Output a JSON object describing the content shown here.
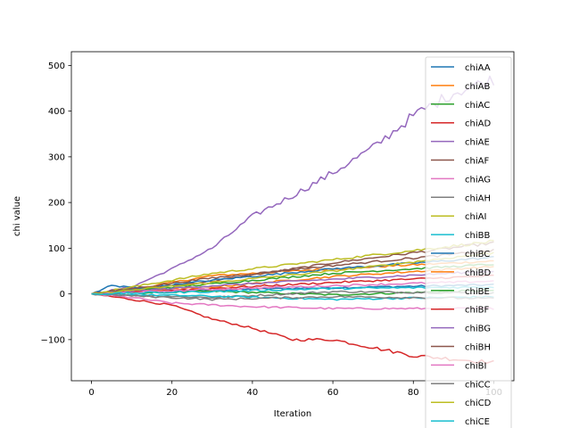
{
  "chart_data": {
    "type": "line",
    "title": "",
    "xlabel": "Iteration",
    "ylabel": "chi value",
    "xlim": [
      -5,
      105
    ],
    "ylim": [
      -190,
      530
    ],
    "xticks": [
      0,
      20,
      40,
      60,
      80,
      100
    ],
    "yticks": [
      -100,
      0,
      100,
      200,
      300,
      400,
      500
    ],
    "grid": false,
    "legend_position": "right",
    "n_points": 101,
    "series": [
      {
        "name": "chiAA",
        "color": "#1f77b4",
        "anchors": [
          [
            0,
            0
          ],
          [
            5,
            18
          ],
          [
            20,
            6
          ],
          [
            50,
            12
          ],
          [
            100,
            20
          ]
        ]
      },
      {
        "name": "chiAB",
        "color": "#ff7f0e",
        "anchors": [
          [
            0,
            0
          ],
          [
            10,
            10
          ],
          [
            30,
            40
          ],
          [
            60,
            55
          ],
          [
            100,
            72
          ]
        ]
      },
      {
        "name": "chiAC",
        "color": "#2ca02c",
        "anchors": [
          [
            0,
            0
          ],
          [
            30,
            6
          ],
          [
            60,
            -2
          ],
          [
            100,
            8
          ]
        ]
      },
      {
        "name": "chiAD",
        "color": "#d62728",
        "anchors": [
          [
            0,
            0
          ],
          [
            10,
            -12
          ],
          [
            20,
            -25
          ],
          [
            30,
            -55
          ],
          [
            40,
            -75
          ],
          [
            50,
            -100
          ],
          [
            60,
            -100
          ],
          [
            80,
            -135
          ],
          [
            100,
            -150
          ]
        ]
      },
      {
        "name": "chiAE",
        "color": "#9467bd",
        "anchors": [
          [
            0,
            0
          ],
          [
            10,
            15
          ],
          [
            20,
            55
          ],
          [
            30,
            100
          ],
          [
            40,
            170
          ],
          [
            50,
            215
          ],
          [
            60,
            265
          ],
          [
            70,
            320
          ],
          [
            80,
            390
          ],
          [
            90,
            440
          ],
          [
            100,
            470
          ]
        ]
      },
      {
        "name": "chiAF",
        "color": "#8c564b",
        "anchors": [
          [
            0,
            0
          ],
          [
            30,
            28
          ],
          [
            60,
            68
          ],
          [
            100,
            112
          ]
        ]
      },
      {
        "name": "chiAG",
        "color": "#e377c2",
        "anchors": [
          [
            0,
            0
          ],
          [
            10,
            -8
          ],
          [
            20,
            -20
          ],
          [
            40,
            -28
          ],
          [
            60,
            -32
          ],
          [
            100,
            -32
          ]
        ]
      },
      {
        "name": "chiAH",
        "color": "#7f7f7f",
        "anchors": [
          [
            0,
            0
          ],
          [
            30,
            -8
          ],
          [
            60,
            5
          ],
          [
            100,
            2
          ]
        ]
      },
      {
        "name": "chiAI",
        "color": "#bcbd22",
        "anchors": [
          [
            0,
            0
          ],
          [
            30,
            45
          ],
          [
            60,
            75
          ],
          [
            100,
            115
          ]
        ]
      },
      {
        "name": "chiBB",
        "color": "#17becf",
        "anchors": [
          [
            0,
            0
          ],
          [
            30,
            -5
          ],
          [
            60,
            -12
          ],
          [
            100,
            -6
          ]
        ]
      },
      {
        "name": "chiBC",
        "color": "#1f77b4",
        "anchors": [
          [
            0,
            0
          ],
          [
            30,
            30
          ],
          [
            60,
            55
          ],
          [
            100,
            80
          ]
        ]
      },
      {
        "name": "chiBD",
        "color": "#ff7f0e",
        "anchors": [
          [
            0,
            0
          ],
          [
            30,
            15
          ],
          [
            60,
            38
          ],
          [
            100,
            60
          ]
        ]
      },
      {
        "name": "chiBE",
        "color": "#2ca02c",
        "anchors": [
          [
            0,
            0
          ],
          [
            30,
            22
          ],
          [
            60,
            45
          ],
          [
            100,
            65
          ]
        ]
      },
      {
        "name": "chiBF",
        "color": "#d62728",
        "anchors": [
          [
            0,
            0
          ],
          [
            30,
            12
          ],
          [
            60,
            25
          ],
          [
            100,
            40
          ]
        ]
      },
      {
        "name": "chiBG",
        "color": "#9467bd",
        "anchors": [
          [
            0,
            0
          ],
          [
            30,
            18
          ],
          [
            60,
            32
          ],
          [
            100,
            50
          ]
        ]
      },
      {
        "name": "chiBH",
        "color": "#8c564b",
        "anchors": [
          [
            0,
            0
          ],
          [
            30,
            35
          ],
          [
            60,
            62
          ],
          [
            100,
            95
          ]
        ]
      },
      {
        "name": "chiBI",
        "color": "#e377c2",
        "anchors": [
          [
            0,
            0
          ],
          [
            30,
            10
          ],
          [
            60,
            18
          ],
          [
            100,
            28
          ]
        ]
      },
      {
        "name": "chiCC",
        "color": "#7f7f7f",
        "anchors": [
          [
            0,
            0
          ],
          [
            30,
            -12
          ],
          [
            60,
            -6
          ],
          [
            100,
            -10
          ]
        ]
      },
      {
        "name": "chiCD",
        "color": "#bcbd22",
        "anchors": [
          [
            0,
            0
          ],
          [
            30,
            25
          ],
          [
            60,
            50
          ],
          [
            100,
            90
          ]
        ]
      },
      {
        "name": "chiCE",
        "color": "#17becf",
        "anchors": [
          [
            0,
            0
          ],
          [
            30,
            5
          ],
          [
            60,
            12
          ],
          [
            100,
            15
          ]
        ]
      }
    ]
  }
}
